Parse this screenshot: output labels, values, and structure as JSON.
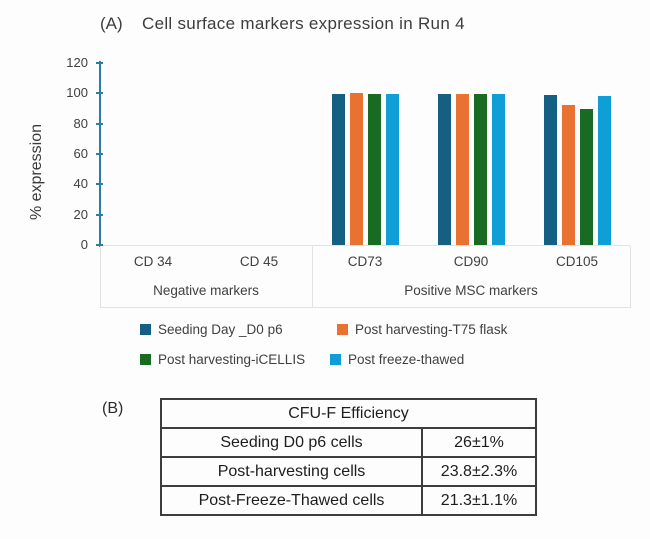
{
  "panel_a": {
    "label": "(A)",
    "title": "Cell surface markers expression in Run 4"
  },
  "chart_data": {
    "type": "bar",
    "title": "Cell surface markers expression in Run 4",
    "xlabel": "",
    "ylabel": "% expression",
    "ylim": [
      0,
      120
    ],
    "yticks": [
      0,
      20,
      40,
      60,
      80,
      100,
      120
    ],
    "grid": false,
    "axis_color": "#2b7da3",
    "legend_position": "bottom",
    "categories": [
      "CD 34",
      "CD 45",
      "CD73",
      "CD90",
      "CD105"
    ],
    "category_groups": [
      {
        "label": "Negative markers",
        "categories": [
          "CD 34",
          "CD 45"
        ]
      },
      {
        "label": "Positive MSC markers",
        "categories": [
          "CD73",
          "CD90",
          "CD105"
        ]
      }
    ],
    "series": [
      {
        "name": "Seeding Day _D0 p6",
        "color": "#156082",
        "values": [
          0,
          0,
          99.5,
          99.5,
          99
        ]
      },
      {
        "name": "Post harvesting-T75 flask",
        "color": "#E97132",
        "values": [
          0,
          0,
          100,
          99.5,
          92
        ]
      },
      {
        "name": "Post harvesting-iCELLIS",
        "color": "#196B24",
        "values": [
          0,
          0,
          99.5,
          99.5,
          90
        ]
      },
      {
        "name": "Post freeze-thawed",
        "color": "#0F9ED5",
        "values": [
          0,
          0,
          99.5,
          99.5,
          98
        ]
      }
    ]
  },
  "panel_b": {
    "label": "(B)",
    "table": {
      "title": "CFU-F Efficiency",
      "rows": [
        {
          "label": "Seeding D0 p6 cells",
          "value": "26±1%"
        },
        {
          "label": "Post-harvesting cells",
          "value": "23.8±2.3%"
        },
        {
          "label": "Post-Freeze-Thawed cells",
          "value": "21.3±1.1%"
        }
      ]
    }
  }
}
